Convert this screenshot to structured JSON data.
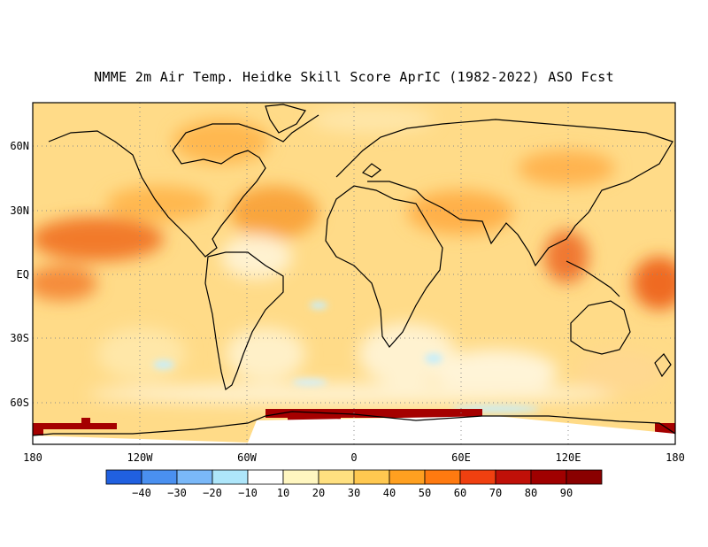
{
  "title": "NMME 2m Air Temp. Heidke Skill Score AprIC (1982-2022) ASO Fcst",
  "map": {
    "projection": "cylindrical-equidistant",
    "lon_range": [
      -180,
      180
    ],
    "lat_range": [
      -80,
      80
    ],
    "grid": "dotted",
    "lat_labels": [
      "60N",
      "30N",
      "EQ",
      "30S",
      "60S"
    ],
    "lat_values": [
      60,
      30,
      0,
      -30,
      -60
    ],
    "lon_labels": [
      "180",
      "120W",
      "60W",
      "0",
      "60E",
      "120E",
      "180"
    ],
    "lon_values": [
      -180,
      -120,
      -60,
      0,
      60,
      120,
      180
    ]
  },
  "colorbar": {
    "levels": [
      "-40",
      "-30",
      "-20",
      "-10",
      "10",
      "20",
      "30",
      "40",
      "50",
      "60",
      "70",
      "80",
      "90"
    ],
    "colors": [
      "#2060e0",
      "#4a90f0",
      "#7ab8f8",
      "#aee6fa",
      "#ffffff",
      "#fff6c0",
      "#ffe080",
      "#ffc850",
      "#ffa020",
      "#ff7a10",
      "#f04010",
      "#c01008",
      "#a00000",
      "#8a0000"
    ]
  }
}
